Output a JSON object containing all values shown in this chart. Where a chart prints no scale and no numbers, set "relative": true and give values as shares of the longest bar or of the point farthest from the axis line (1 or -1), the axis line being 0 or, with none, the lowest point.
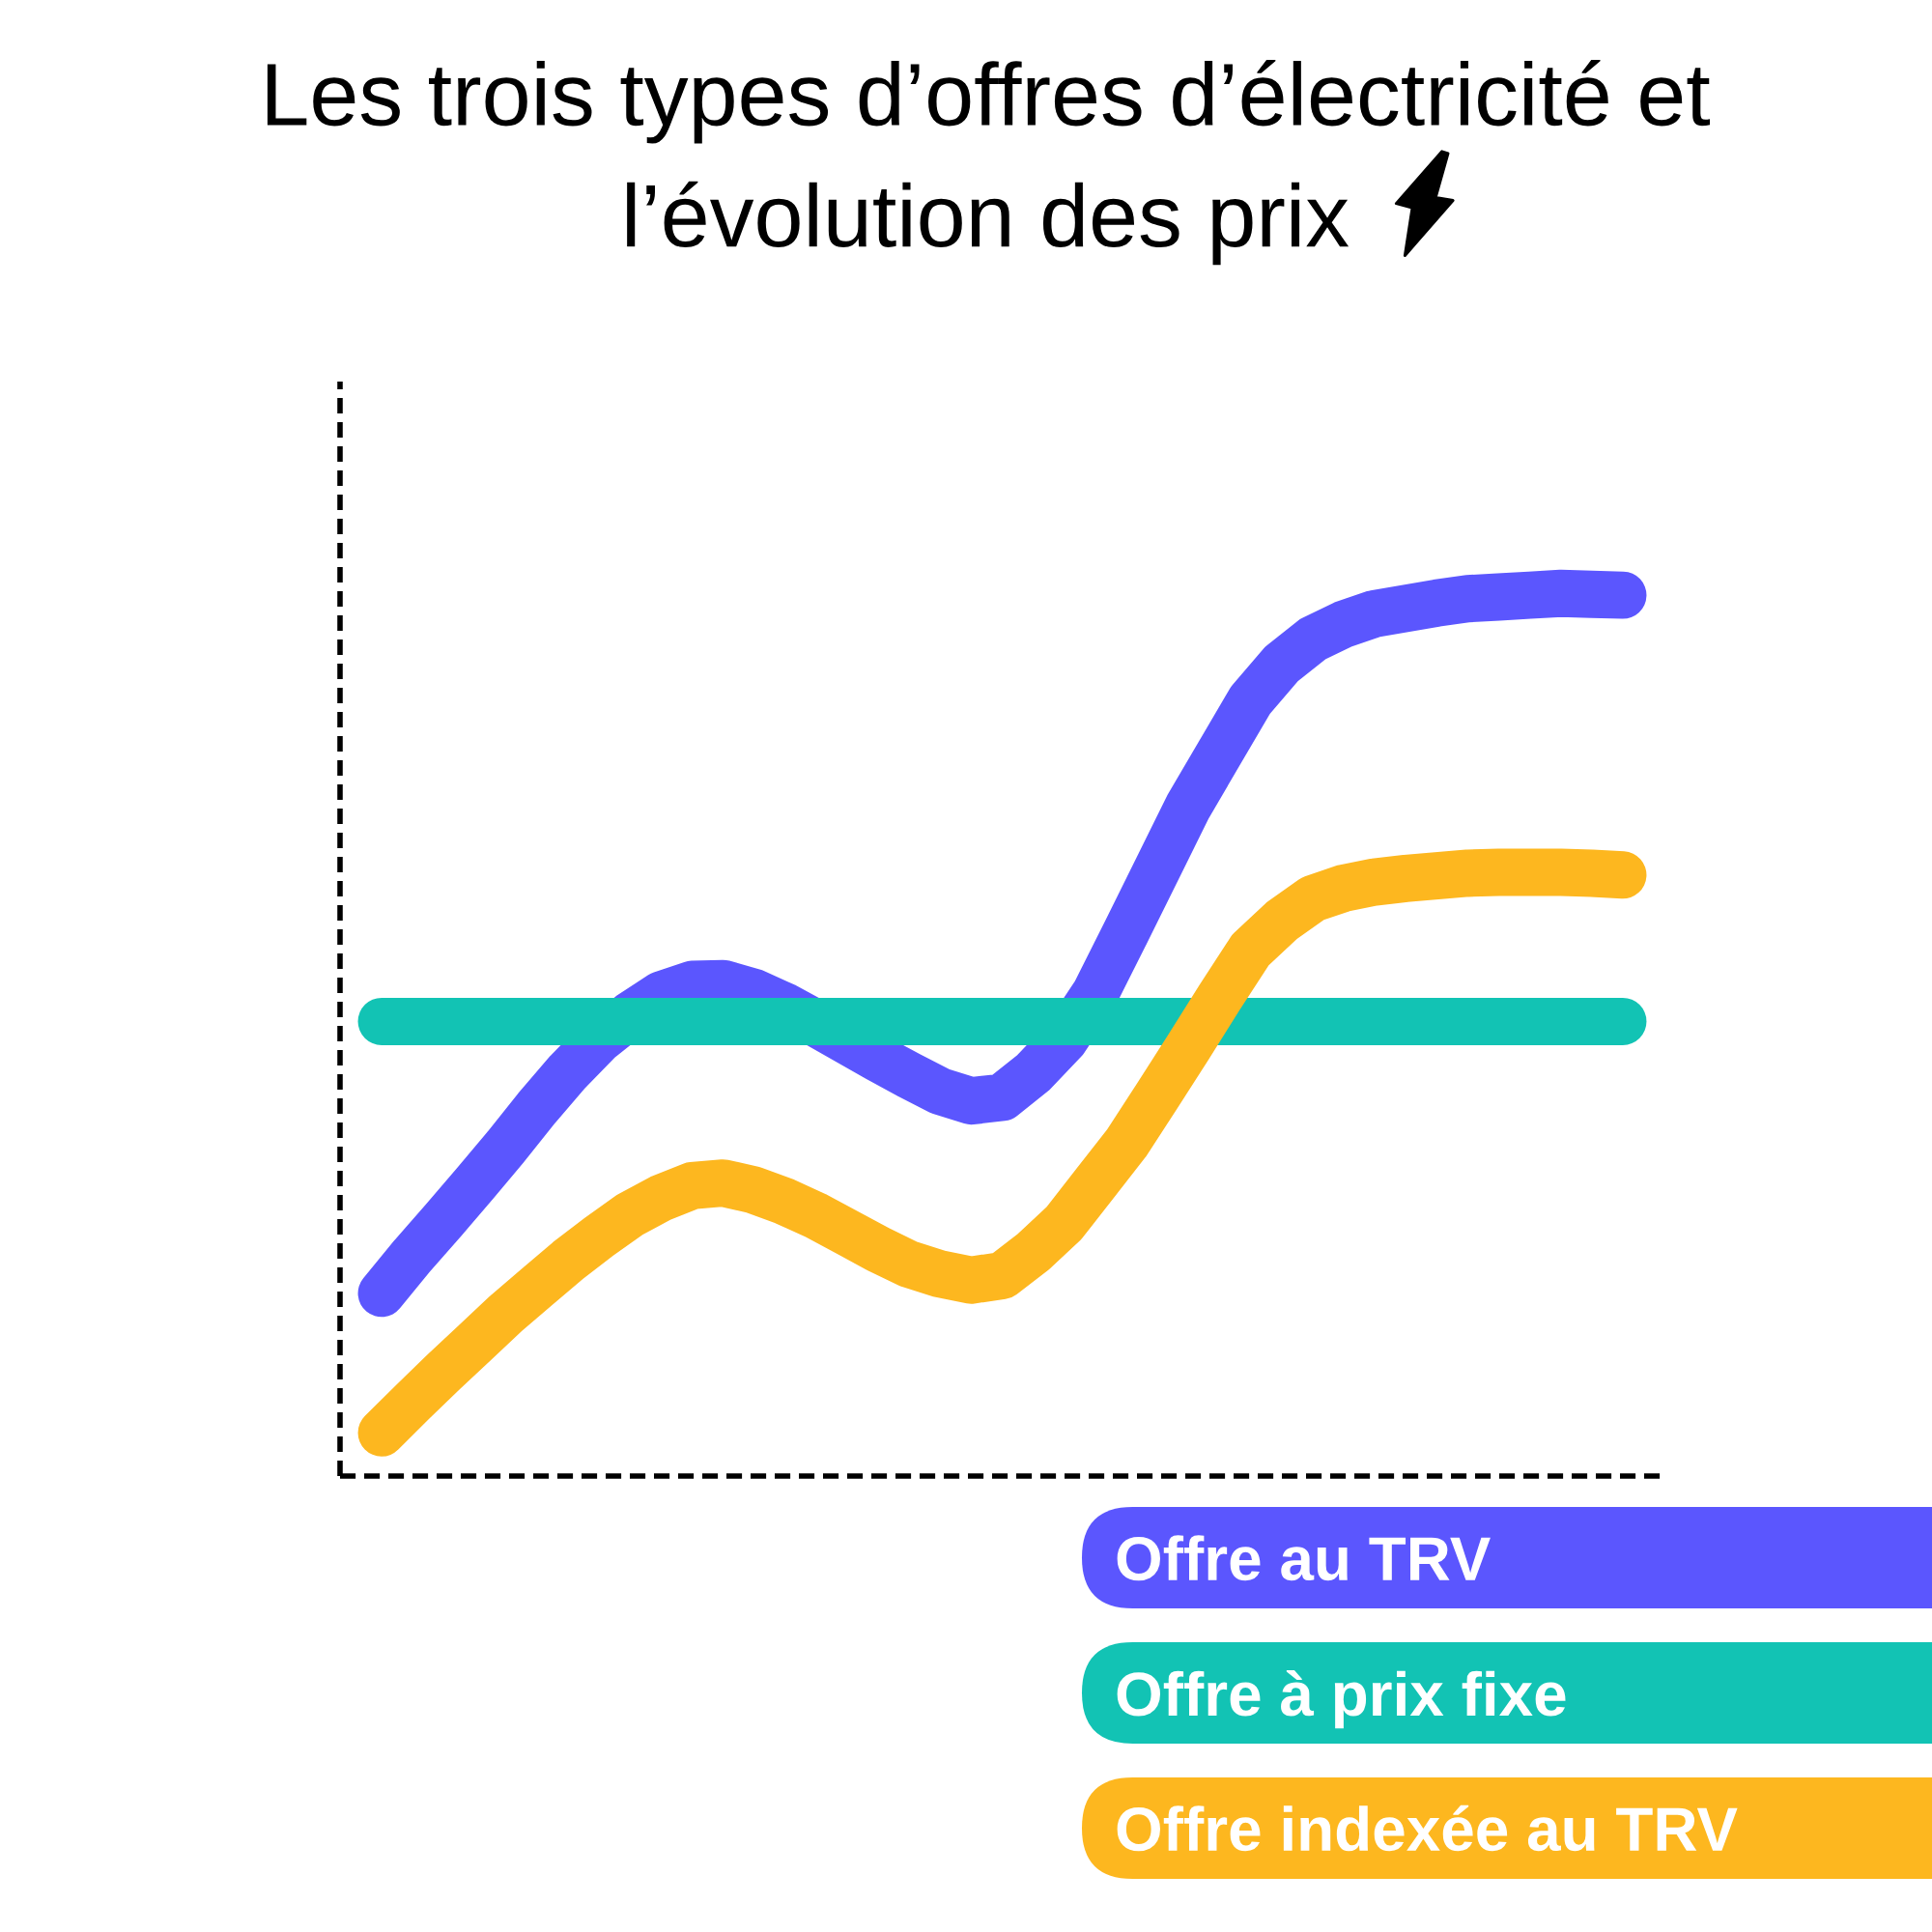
{
  "chart_data": {
    "type": "line",
    "title": "Les trois types d’offres d’électricité et\nl’évolution des prix",
    "categories": [
      null,
      null,
      null,
      null,
      null,
      null,
      null,
      null,
      null,
      null,
      null,
      null,
      null,
      null,
      null,
      null,
      null,
      null,
      null,
      null,
      null,
      null,
      null,
      null,
      null,
      null,
      null,
      null,
      null,
      null,
      null,
      null,
      null,
      null,
      null,
      null,
      null,
      null,
      null,
      null,
      null
    ],
    "relative": true,
    "series": [
      {
        "name": "Offre au TRV",
        "color": "#5b56fe",
        "values": [
          0.207,
          0.25,
          0.29,
          0.331,
          0.373,
          0.417,
          0.458,
          0.494,
          0.522,
          0.545,
          0.557,
          0.558,
          0.548,
          0.532,
          0.513,
          0.493,
          0.473,
          0.454,
          0.436,
          0.425,
          0.429,
          0.457,
          0.494,
          0.547,
          0.617,
          0.688,
          0.759,
          0.819,
          0.879,
          0.92,
          0.948,
          0.965,
          0.977,
          0.983,
          0.989,
          0.994,
          0.996,
          0.998,
          1.0,
          0.999,
          0.998
        ]
      },
      {
        "name": "Offre à prix fixe",
        "color": "#12c3b4",
        "values": [
          0.515,
          0.515,
          0.515,
          0.515,
          0.515,
          0.515,
          0.515,
          0.515,
          0.515,
          0.515,
          0.515,
          0.515,
          0.515,
          0.515,
          0.515,
          0.515,
          0.515,
          0.515,
          0.515,
          0.515,
          0.515,
          0.515,
          0.515,
          0.515,
          0.515,
          0.515,
          0.515,
          0.515,
          0.515,
          0.515,
          0.515,
          0.515,
          0.515,
          0.515,
          0.515,
          0.515,
          0.515,
          0.515,
          0.515,
          0.515,
          0.515
        ]
      },
      {
        "name": "Offre indexée au TRV",
        "color": "#fdb71f",
        "values": [
          0.049,
          0.084,
          0.118,
          0.151,
          0.184,
          0.214,
          0.244,
          0.271,
          0.296,
          0.315,
          0.329,
          0.332,
          0.324,
          0.311,
          0.295,
          0.276,
          0.257,
          0.24,
          0.229,
          0.222,
          0.227,
          0.254,
          0.287,
          0.332,
          0.377,
          0.431,
          0.486,
          0.542,
          0.596,
          0.629,
          0.654,
          0.666,
          0.673,
          0.677,
          0.68,
          0.683,
          0.684,
          0.684,
          0.684,
          0.683,
          0.681
        ]
      }
    ],
    "legend": "bottom right"
  }
}
